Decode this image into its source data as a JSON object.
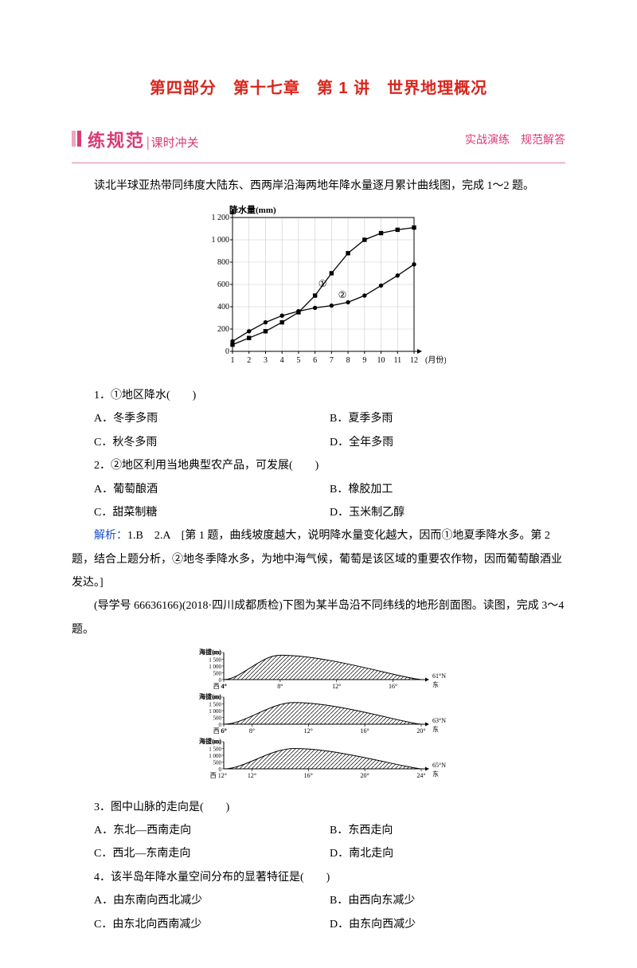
{
  "title": "第四部分　第十七章　第 1 讲　世界地理概况",
  "section_bar": {
    "title": "练规范",
    "divider": "|",
    "sub": "课时冲关",
    "right": "实战演练　规范解答"
  },
  "intro1": "读北半球亚热带同纬度大陆东、西两岸沿海两地年降水量逐月累计曲线图，完成 1～2 题。",
  "chart1": {
    "axis_title": "降水量(mm)",
    "x_label": "(月份)",
    "yticks": [
      0,
      200,
      400,
      600,
      800,
      1000,
      1200
    ],
    "ytick_labels": [
      "0",
      "200",
      "400",
      "600",
      "800",
      "1 000",
      "1 200"
    ],
    "xticks": [
      1,
      2,
      3,
      4,
      5,
      6,
      7,
      8,
      9,
      10,
      11,
      12
    ],
    "series1": {
      "label": "①",
      "marker": "square",
      "color": "#000000",
      "values": [
        60,
        120,
        180,
        260,
        350,
        500,
        700,
        880,
        1000,
        1060,
        1090,
        1110
      ]
    },
    "series2": {
      "label": "②",
      "marker": "circle",
      "color": "#000000",
      "values": [
        90,
        180,
        260,
        320,
        360,
        390,
        410,
        440,
        500,
        590,
        680,
        780
      ]
    },
    "bg": "#ffffff",
    "grid_color": "#cccccc"
  },
  "q1": {
    "stem": "1．①地区降水(　　)",
    "A": "A．冬季多雨",
    "B": "B．夏季多雨",
    "C": "C．秋冬多雨",
    "D": "D．全年多雨"
  },
  "q2": {
    "stem": "2．②地区利用当地典型农产品，可发展(　　)",
    "A": "A．葡萄酿酒",
    "B": "B．橡胶加工",
    "C": "C．甜菜制糖",
    "D": "D．玉米制乙醇"
  },
  "analysis1_label": "解析：",
  "analysis1_body": "1.B　2.A　[第 1 题，曲线坡度越大，说明降水量变化越大，因而①地夏季降水多。第 2 题，结合上题分析，②地冬季降水多，为地中海气候，葡萄是该区域的重要农作物，因而葡萄酿酒业发达。]",
  "intro2": "(导学号 66636166)(2018·四川成都质检)下图为某半岛沿不同纬线的地形剖面图。读图，完成 3～4 题。",
  "chart2": {
    "panels": [
      {
        "lat": "61°N",
        "xstart": 4,
        "xend": 18,
        "xticks": [
          "4°",
          "8°",
          "12°",
          "16°"
        ],
        "peak_x": 8,
        "peak_h": 1800
      },
      {
        "lat": "63°N",
        "xstart": 6,
        "xend": 20,
        "xticks": [
          "6°",
          "8°",
          "12°",
          "16°",
          "20°"
        ],
        "peak_x": 11,
        "peak_h": 1600
      },
      {
        "lat": "65°N",
        "xstart": 10,
        "xend": 24,
        "xticks": [
          "12°",
          "16°",
          "20°",
          "24°"
        ],
        "peak_x": 15,
        "peak_h": 1500
      }
    ],
    "y_title": "海拔(m)",
    "yticks": [
      "2 000",
      "1 500",
      "1 000",
      "500",
      "0"
    ],
    "west": "西",
    "east": "东"
  },
  "q3": {
    "stem": "3．图中山脉的走向是(　　)",
    "A": "A．东北—西南走向",
    "B": "B．东西走向",
    "C": "C．西北—东南走向",
    "D": "D．南北走向"
  },
  "q4": {
    "stem": "4．该半岛年降水量空间分布的显著特征是(　　)",
    "A": "A．由东南向西北减少",
    "B": "B．由西向东减少",
    "C": "C．由东北向西南减少",
    "D": "D．由东向西减少"
  }
}
